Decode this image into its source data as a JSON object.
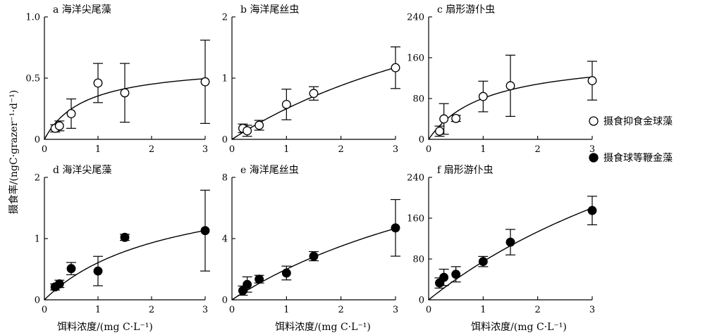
{
  "figure": {
    "ylabel": "摄食率/(ngC·grazer⁻¹·d⁻¹)",
    "xlabel": "饵料浓度/(mg C·L⁻¹)",
    "legend": {
      "items": [
        {
          "label": "摄食抑食金球藻",
          "marker": "open-circle"
        },
        {
          "label": "摄食球等鞭金藻",
          "marker": "filled-circle"
        }
      ],
      "placement": "right"
    },
    "colors": {
      "axis": "#000000",
      "open_fill": "#ffffff",
      "filled_fill": "#000000"
    }
  },
  "chart_data": [
    {
      "type": "scatter",
      "title": "a 海洋尖尾藻",
      "marker": "open-circle",
      "xlim": [
        0,
        3
      ],
      "ylim": [
        0,
        1.0
      ],
      "xticks": [
        0,
        1,
        2,
        3
      ],
      "xtick_labels": [
        "0",
        "1",
        "2",
        "3"
      ],
      "yticks": [
        0,
        0.5,
        1.0
      ],
      "ytick_labels": [
        "0",
        "0.5",
        "1.0"
      ],
      "x": [
        0.2,
        0.28,
        0.5,
        1.0,
        1.5,
        3.0
      ],
      "y": [
        0.09,
        0.11,
        0.21,
        0.46,
        0.38,
        0.47
      ],
      "err": [
        0.03,
        0.04,
        0.12,
        0.16,
        0.24,
        0.34
      ],
      "fit": {
        "vmax": 0.62,
        "k": 0.75
      }
    },
    {
      "type": "scatter",
      "title": "b 海洋尾丝虫",
      "marker": "open-circle",
      "xlim": [
        0,
        3
      ],
      "ylim": [
        0,
        2
      ],
      "xticks": [
        0,
        1,
        2,
        3
      ],
      "xtick_labels": [
        "0",
        "1",
        "2",
        "3"
      ],
      "yticks": [
        0,
        1,
        2
      ],
      "ytick_labels": [
        "0",
        "1",
        "2"
      ],
      "x": [
        0.2,
        0.28,
        0.5,
        1.0,
        1.5,
        3.0
      ],
      "y": [
        0.18,
        0.14,
        0.23,
        0.57,
        0.75,
        1.17
      ],
      "err": [
        0.07,
        0.09,
        0.08,
        0.25,
        0.11,
        0.34
      ],
      "fit": {
        "vmax": 3.6,
        "k": 6.2
      }
    },
    {
      "type": "scatter",
      "title": "c 扇形游仆虫",
      "marker": "open-circle",
      "xlim": [
        0,
        3
      ],
      "ylim": [
        0,
        240
      ],
      "xticks": [
        0,
        1,
        2,
        3
      ],
      "xtick_labels": [
        "0",
        "1",
        "2",
        "3"
      ],
      "yticks": [
        0,
        80,
        160,
        240
      ],
      "ytick_labels": [
        "0",
        "80",
        "160",
        "240"
      ],
      "x": [
        0.2,
        0.28,
        0.5,
        1.0,
        1.5,
        3.0
      ],
      "y": [
        16,
        40,
        41,
        84,
        105,
        115
      ],
      "err": [
        10,
        30,
        6,
        30,
        60,
        38
      ],
      "fit": {
        "vmax": 165,
        "k": 1.05
      }
    },
    {
      "type": "scatter",
      "title": "d 海洋尖尾藻",
      "marker": "filled-circle",
      "xlim": [
        0,
        3
      ],
      "ylim": [
        0,
        2
      ],
      "xticks": [
        0,
        1,
        2,
        3
      ],
      "xtick_labels": [
        "0",
        "1",
        "2",
        "3"
      ],
      "yticks": [
        0,
        1,
        2
      ],
      "ytick_labels": [
        "0",
        "1",
        "2"
      ],
      "x": [
        0.2,
        0.28,
        0.5,
        1.0,
        1.5,
        3.0
      ],
      "y": [
        0.21,
        0.26,
        0.51,
        0.47,
        1.02,
        1.13
      ],
      "err": [
        0.05,
        0.06,
        0.1,
        0.24,
        0.05,
        0.66
      ],
      "fit": {
        "vmax": 2.0,
        "k": 2.3
      }
    },
    {
      "type": "scatter",
      "title": "e 海洋尾丝虫",
      "marker": "filled-circle",
      "xlim": [
        0,
        3
      ],
      "ylim": [
        0,
        8
      ],
      "xticks": [
        0,
        1,
        2,
        3
      ],
      "xtick_labels": [
        "0",
        "1",
        "2",
        "3"
      ],
      "yticks": [
        0,
        4,
        8
      ],
      "ytick_labels": [
        "0",
        "4",
        "8"
      ],
      "x": [
        0.2,
        0.28,
        0.5,
        1.0,
        1.5,
        3.0
      ],
      "y": [
        0.6,
        1.0,
        1.35,
        1.75,
        2.85,
        4.7
      ],
      "err": [
        0.3,
        0.5,
        0.25,
        0.45,
        0.3,
        1.85
      ],
      "fit": {
        "vmax": 14.0,
        "k": 6.0
      }
    },
    {
      "type": "scatter",
      "title": "f 扇形游仆虫",
      "marker": "filled-circle",
      "xlim": [
        0,
        3
      ],
      "ylim": [
        0,
        240
      ],
      "xticks": [
        0,
        1,
        2,
        3
      ],
      "xtick_labels": [
        "0",
        "1",
        "2",
        "3"
      ],
      "yticks": [
        0,
        80,
        160,
        240
      ],
      "ytick_labels": [
        "0",
        "80",
        "160",
        "240"
      ],
      "x": [
        0.2,
        0.28,
        0.5,
        1.0,
        1.5,
        3.0
      ],
      "y": [
        33,
        44,
        50,
        75,
        113,
        175
      ],
      "err": [
        10,
        16,
        15,
        10,
        25,
        28
      ],
      "fit": {
        "vmax": 600,
        "k": 7.0
      }
    }
  ]
}
